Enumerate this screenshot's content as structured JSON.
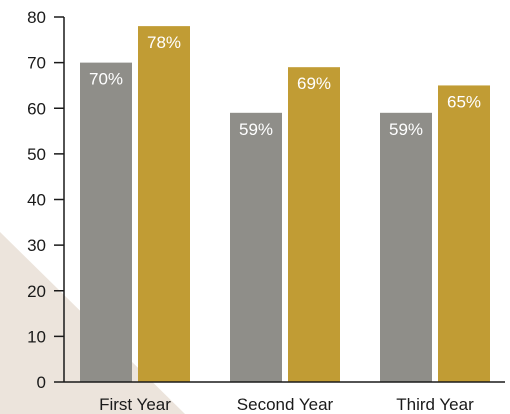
{
  "chart_data": {
    "type": "bar",
    "categories": [
      "First Year",
      "Second Year",
      "Third Year"
    ],
    "series": [
      {
        "values": [
          70,
          59,
          59
        ],
        "labels": [
          "70%",
          "59%",
          "59%"
        ],
        "color": "#8f8e89"
      },
      {
        "values": [
          78,
          69,
          65
        ],
        "labels": [
          "78%",
          "69%",
          "65%"
        ],
        "color": "#c19c34"
      }
    ],
    "yticks": [
      0,
      10,
      20,
      30,
      40,
      50,
      60,
      70,
      80
    ],
    "ylim": [
      0,
      80
    ],
    "title": "",
    "xlabel": "",
    "ylabel": "",
    "grid": false,
    "legend": "none"
  }
}
